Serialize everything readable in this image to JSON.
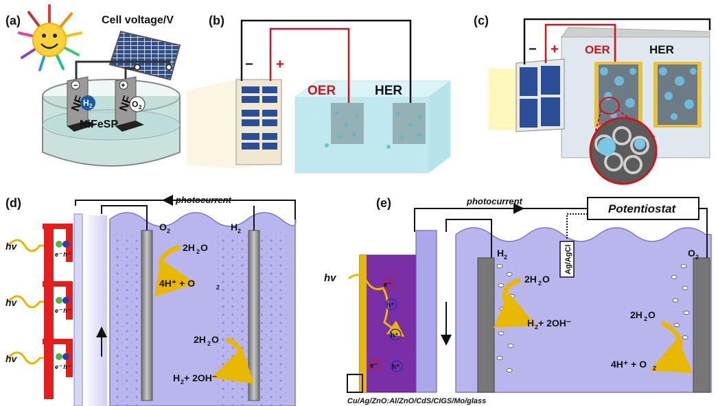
{
  "panels": {
    "a": {
      "tag": "(a)",
      "title": "Cell voltage/V",
      "electrode_left": "NF",
      "electrode_right": "NF",
      "gas_left": "H",
      "gas_left_sub": "2",
      "gas_right": "O",
      "gas_right_sub": "2",
      "electrolyte": "NiFeSP",
      "minus": "−",
      "plus": "+"
    },
    "b": {
      "tag": "(b)",
      "minus": "−",
      "plus": "+",
      "oer": "OER",
      "her": "HER"
    },
    "c": {
      "tag": "(c)",
      "minus": "−",
      "plus": "+",
      "oer": "OER",
      "her": "HER"
    },
    "d": {
      "tag": "(d)",
      "current": "photocurrent",
      "hv": "hv",
      "eh": "e⁻ h⁺",
      "o2": "O",
      "h2": "H",
      "sub2": "2",
      "anode_reactant": "2H",
      "anode_reactant_tail": "O",
      "anode_product": "4H⁺ + O",
      "cathode_reactant": "2H",
      "cathode_reactant_tail": "O",
      "cathode_product": "H",
      "cathode_product_tail": " + 2OH⁻"
    },
    "e": {
      "tag": "(e)",
      "current": "photocurrent",
      "potentiostat": "Potentiostat",
      "reference": "Ag/AgCl",
      "hv": "hv",
      "e": "e⁻",
      "h": "h⁺",
      "h2": "H",
      "o2": "O",
      "sub2": "2",
      "cathode_reactant": "2H",
      "cathode_reactant_tail": "O",
      "cathode_product": "H",
      "cathode_product_tail": " + 2OH⁻",
      "anode_reactant": "2H",
      "anode_reactant_tail": "O",
      "anode_product": "4H⁺ + O",
      "device_stack": "Cu/Ag/ZnO:Al/ZnO/CdS/CIGS/Mo/glass"
    }
  },
  "colors": {
    "wire_red": "#d4121a",
    "wire_black": "#111111",
    "electrolyte_blue": "#bfe9ef",
    "cell_purple": "#b9b6ee",
    "device_purple": "#7a2fa6",
    "pv_blue": "#2a4e98",
    "arrow_gold": "#e8b800",
    "electrode_grey": "#8a8a8a"
  }
}
